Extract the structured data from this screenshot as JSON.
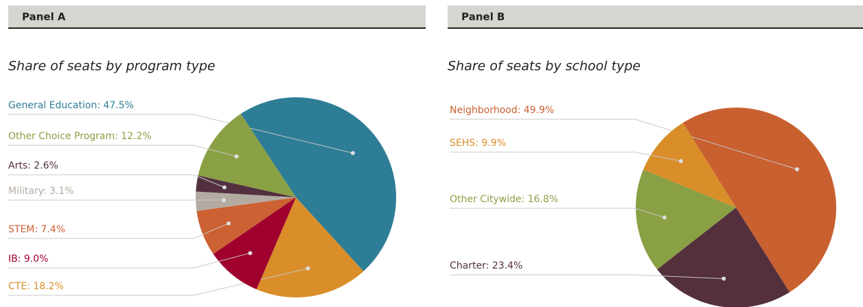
{
  "chart_data": [
    {
      "type": "pie",
      "panel": "Panel A",
      "title": "Share of seats by program type",
      "values": [
        47.5,
        18.2,
        9.0,
        7.4,
        3.1,
        2.6,
        12.2
      ],
      "value_labels": [
        "General Education: 47.5%",
        "CTE: 18.2%",
        "IB: 9.0%",
        "STEM: 7.4%",
        "Military: 3.1%",
        "Arts: 2.6%",
        "Other Choice Program: 12.2%"
      ],
      "colors": [
        "#2e7d96",
        "#d98e2a",
        "#a0002e",
        "#cc6133",
        "#b3aba2",
        "#533040",
        "#8aa044"
      ]
    },
    {
      "type": "pie",
      "panel": "Panel B",
      "title": "Share of seats by school type",
      "values": [
        49.9,
        23.4,
        16.8,
        9.9
      ],
      "value_labels": [
        "Neighborhood: 49.9%",
        "Charter: 23.4%",
        "Other Citywide: 16.8%",
        "SEHS: 9.9%"
      ],
      "colors": [
        "#c96030",
        "#53303c",
        "#8aa044",
        "#d98e2a"
      ]
    }
  ]
}
